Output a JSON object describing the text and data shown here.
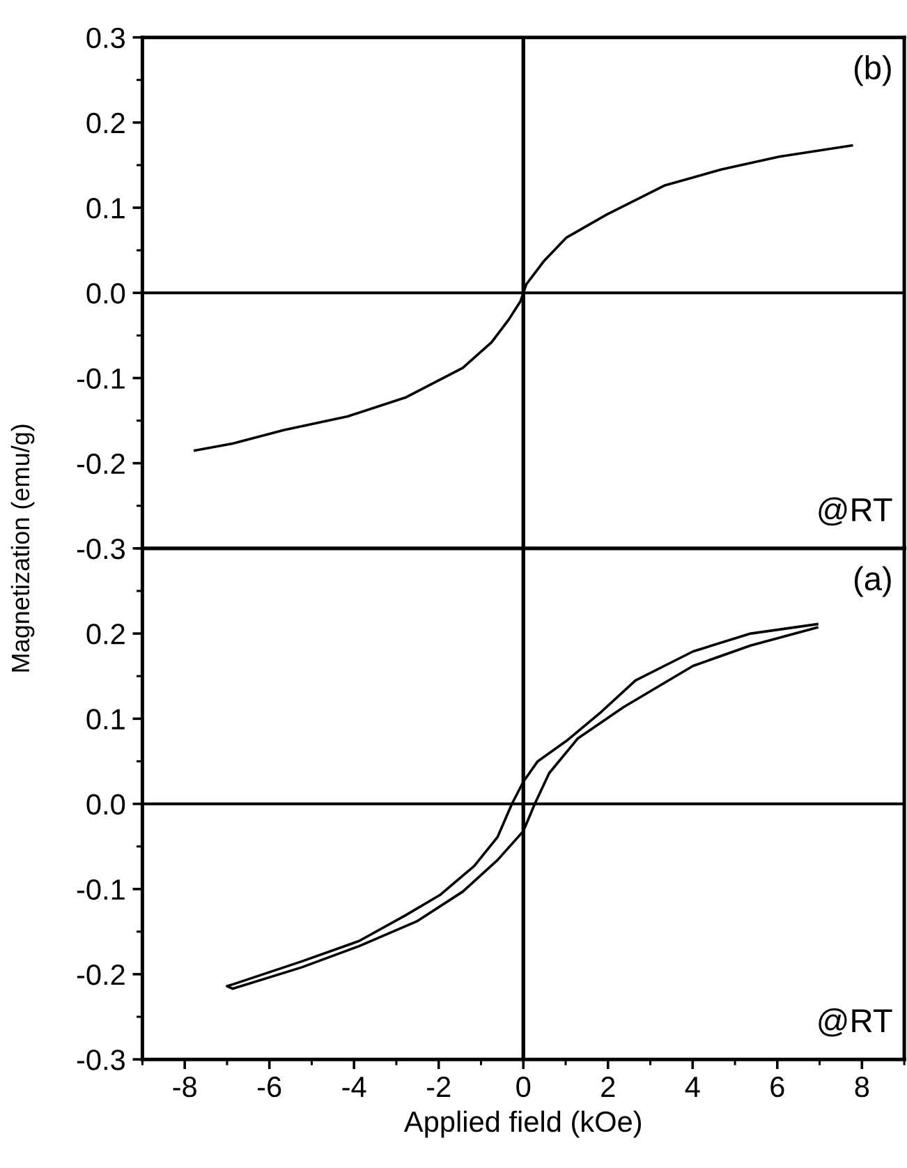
{
  "chart_data": [
    {
      "type": "line",
      "ylabel": "Magnetization (emu/g)",
      "xlim": [
        -9,
        9
      ],
      "xticks": [
        -8,
        -6,
        -4,
        -2,
        0,
        2,
        4,
        6,
        8
      ],
      "ylim": [
        -0.3,
        0.3
      ],
      "yticks": [
        -0.3,
        -0.2,
        -0.1,
        {
          "value": 0,
          "label": "0.0"
        },
        0.1,
        0.2,
        0.3
      ],
      "tick_labels": "y",
      "grid": false,
      "legend": false,
      "marker": "none",
      "line_style": "solid",
      "ref_lines": [
        {
          "axis": "x",
          "value": 0,
          "color": "#000000"
        },
        {
          "axis": "y",
          "value": 0,
          "color": "#000000"
        }
      ],
      "annotations": [
        "(b)",
        "@RT"
      ],
      "series": [
        {
          "color": "#000000",
          "x": [
            7.76,
            6.05,
            4.69,
            3.33,
            1.97,
            1.02,
            0.48,
            0.07,
            -0.07,
            -0.34,
            -0.75,
            -1.43,
            -2.79,
            -4.15,
            -5.65,
            -6.87,
            -7.76
          ],
          "values": [
            0.173,
            0.16,
            0.145,
            0.126,
            0.092,
            0.065,
            0.037,
            0.01,
            -0.01,
            -0.031,
            -0.058,
            -0.088,
            -0.123,
            -0.145,
            -0.161,
            -0.177,
            -0.185
          ]
        }
      ]
    },
    {
      "type": "line",
      "xlabel": "Applied field (kOe)",
      "xlim": [
        -9,
        9
      ],
      "xticks": [
        -8,
        -6,
        -4,
        -2,
        0,
        2,
        4,
        6,
        8
      ],
      "ylim": [
        -0.3,
        0.3
      ],
      "yticks": [
        -0.3,
        -0.2,
        -0.1,
        {
          "value": 0,
          "label": "0.0"
        },
        0.1,
        0.2
      ],
      "grid": false,
      "legend": false,
      "marker": "none",
      "line_style": "solid",
      "ref_lines": [
        {
          "axis": "x",
          "value": 0,
          "color": "#000000"
        },
        {
          "axis": "y",
          "value": 0,
          "color": "#000000"
        }
      ],
      "annotations": [
        "(a)",
        "@RT"
      ],
      "series": [
        {
          "color": "#000000",
          "x": [
            6.94,
            5.37,
            4.01,
            2.65,
            1.84,
            1.02,
            0.34,
            0,
            -0.27,
            -0.61,
            -1.16,
            -1.97,
            -2.79,
            -3.88,
            -5.24,
            -6.87,
            -7.0,
            -6.87,
            -5.24,
            -3.88,
            -2.52,
            -1.43,
            -0.61,
            0,
            0.27,
            0.61,
            1.29,
            2.38,
            4.01,
            5.37,
            6.94
          ],
          "values": [
            0.211,
            0.2,
            0.179,
            0.145,
            0.108,
            0.074,
            0.05,
            0.026,
            0,
            -0.039,
            -0.073,
            -0.107,
            -0.131,
            -0.161,
            -0.185,
            -0.212,
            -0.214,
            -0.217,
            -0.192,
            -0.167,
            -0.138,
            -0.103,
            -0.066,
            -0.032,
            0,
            0.036,
            0.077,
            0.114,
            0.162,
            0.186,
            0.207
          ]
        }
      ]
    }
  ]
}
